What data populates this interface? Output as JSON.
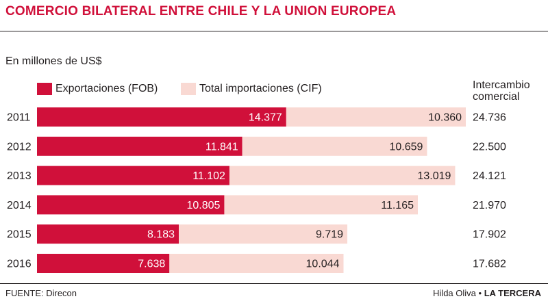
{
  "title": "COMERCIO BILATERAL ENTRE CHILE Y LA UNION EUROPEA",
  "unit_label": "En millones de US$",
  "legend": {
    "exports_label": "Exportaciones (FOB)",
    "imports_label": "Total importaciones (CIF)"
  },
  "intercambio_header": "Intercambio comercial",
  "source": "FUENTE: Direcon",
  "credit": {
    "author": "Hilda Oliva",
    "separator": "•",
    "brand": "LA TERCERA"
  },
  "colors": {
    "exports": "#d0103a",
    "imports": "#f9d9d3",
    "title": "#d0103a"
  },
  "chart_data": {
    "type": "bar",
    "orientation": "horizontal",
    "stacked": true,
    "categories": [
      "2011",
      "2012",
      "2013",
      "2014",
      "2015",
      "2016"
    ],
    "series": [
      {
        "name": "Exportaciones (FOB)",
        "values": [
          14377,
          11841,
          11102,
          10805,
          8183,
          7638
        ],
        "labels": [
          "14.377",
          "11.841",
          "11.102",
          "10.805",
          "8.183",
          "7.638"
        ]
      },
      {
        "name": "Total importaciones (CIF)",
        "values": [
          10360,
          10659,
          13019,
          11165,
          9719,
          10044
        ],
        "labels": [
          "10.360",
          "10.659",
          "13.019",
          "11.165",
          "9.719",
          "10.044"
        ]
      }
    ],
    "totals": {
      "name": "Intercambio comercial",
      "values": [
        24736,
        22500,
        24121,
        21970,
        17902,
        17682
      ],
      "labels": [
        "24.736",
        "22.500",
        "24.121",
        "21.970",
        "17.902",
        "17.682"
      ]
    },
    "xlim": [
      0,
      24736
    ],
    "grid": false,
    "legend_position": "top"
  }
}
